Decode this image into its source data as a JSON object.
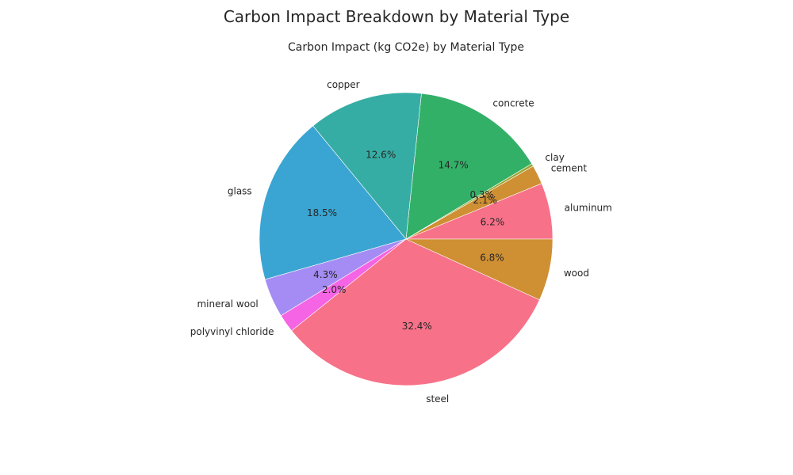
{
  "figure": {
    "title": "Carbon Impact Breakdown by Material Type"
  },
  "chart_data": {
    "type": "pie",
    "title": "Carbon Impact (kg CO2e) by Material Type",
    "start_angle_deg": 0,
    "direction": "counterclockwise",
    "categories": [
      "aluminum",
      "cement",
      "clay",
      "concrete",
      "copper",
      "glass",
      "mineral wool",
      "polyvinyl chloride",
      "steel",
      "wood"
    ],
    "values": [
      6.2,
      2.1,
      0.3,
      14.7,
      12.6,
      18.5,
      4.3,
      2.0,
      32.4,
      6.8
    ],
    "percent_labels": [
      "6.2%",
      "2.1%",
      "0.3%",
      "14.7%",
      "12.6%",
      "18.5%",
      "4.3%",
      "2.0%",
      "32.4%",
      "6.8%"
    ],
    "colors": [
      "#f77189",
      "#cf8f33",
      "#9ca732",
      "#33b068",
      "#36ada4",
      "#3aa5d2",
      "#a48cf4",
      "#f564e4",
      "#f77189",
      "#cf8f33"
    ]
  }
}
